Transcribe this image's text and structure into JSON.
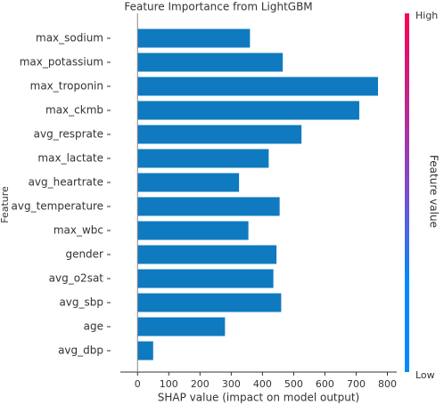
{
  "chart_data": {
    "type": "barh",
    "title": "Feature Importance from LightGBM",
    "x_label": "SHAP value (impact on model output)",
    "y_label": "Feature",
    "categories": [
      "max_sodium",
      "max_potassium",
      "max_troponin",
      "max_ckmb",
      "avg_resprate",
      "max_lactate",
      "avg_heartrate",
      "avg_temperature",
      "max_wbc",
      "gender",
      "avg_o2sat",
      "avg_sbp",
      "age",
      "avg_dbp"
    ],
    "values": [
      360,
      465,
      770,
      710,
      525,
      420,
      325,
      455,
      355,
      445,
      435,
      460,
      280,
      50
    ],
    "color": "#0f7ac0",
    "xlim": [
      -55,
      830
    ],
    "xticks": [
      0,
      100,
      200,
      300,
      400,
      500,
      600,
      700,
      800
    ],
    "colorbar": {
      "label": "Feature value",
      "high": "High",
      "low": "Low",
      "high_color": "#ff0052",
      "low_color": "#008bfb"
    }
  }
}
